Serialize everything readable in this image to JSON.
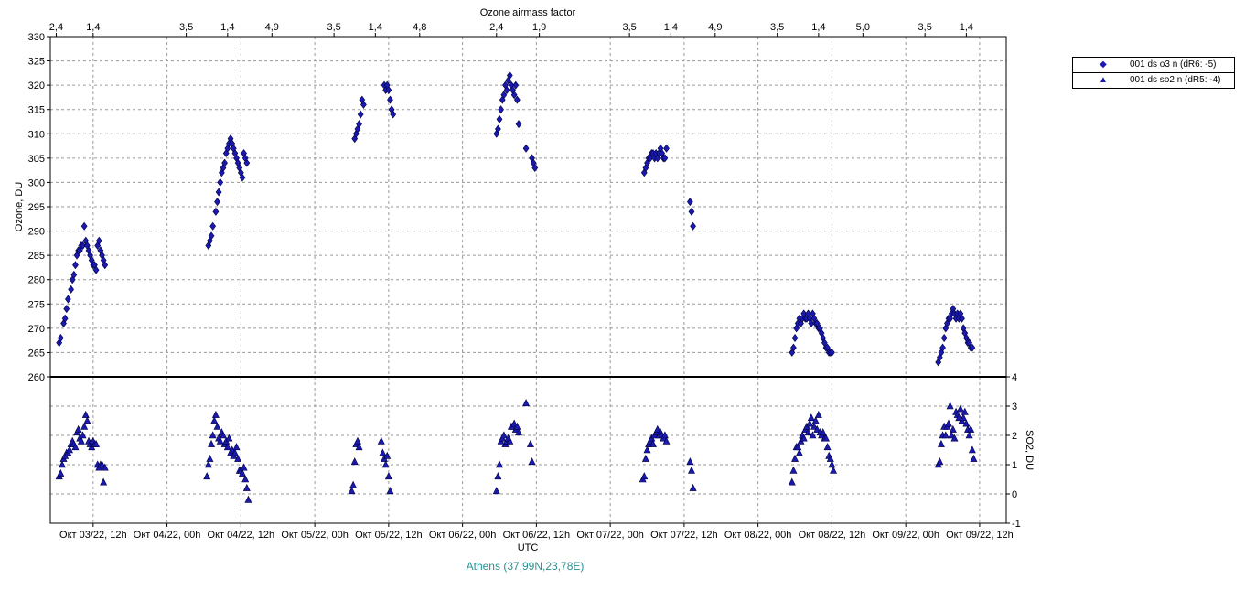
{
  "chart_data": [
    {
      "type": "scatter",
      "panel": "ozone",
      "title": "Ozone airmass factor",
      "xlabel": "UTC",
      "ylabel": "Ozone, DU",
      "ylim": [
        260,
        330
      ],
      "yticks": [
        260,
        265,
        270,
        275,
        280,
        285,
        290,
        295,
        300,
        305,
        310,
        315,
        320,
        325,
        330
      ],
      "top_axis_ticks": [
        {
          "label": "2,4",
          "t": 0.0
        },
        {
          "label": "1,4",
          "t": 0.25
        },
        {
          "label": "3,5",
          "t": 0.88
        },
        {
          "label": "1,4",
          "t": 1.16
        },
        {
          "label": "4,9",
          "t": 1.46
        },
        {
          "label": "3,5",
          "t": 1.88
        },
        {
          "label": "1,4",
          "t": 2.16
        },
        {
          "label": "4,8",
          "t": 2.46
        },
        {
          "label": "2,4",
          "t": 2.98
        },
        {
          "label": "1,9",
          "t": 3.27
        },
        {
          "label": "3,5",
          "t": 3.88
        },
        {
          "label": "1,4",
          "t": 4.16
        },
        {
          "label": "4,9",
          "t": 4.46
        },
        {
          "label": "3,5",
          "t": 4.88
        },
        {
          "label": "1,4",
          "t": 5.16
        },
        {
          "label": "5,0",
          "t": 5.46
        },
        {
          "label": "3,5",
          "t": 5.88
        },
        {
          "label": "1,4",
          "t": 6.16
        }
      ],
      "series": [
        {
          "name": "001 ds o3  n (dR6: -5)",
          "marker": "diamond",
          "color": "#1a1ab0",
          "x": [
            0.02,
            0.03,
            0.05,
            0.06,
            0.07,
            0.08,
            0.1,
            0.11,
            0.12,
            0.13,
            0.14,
            0.15,
            0.16,
            0.17,
            0.18,
            0.19,
            0.2,
            0.21,
            0.22,
            0.23,
            0.24,
            0.25,
            0.26,
            0.27,
            0.28,
            0.29,
            0.3,
            0.31,
            0.32,
            0.33,
            1.03,
            1.04,
            1.05,
            1.06,
            1.08,
            1.09,
            1.1,
            1.11,
            1.12,
            1.13,
            1.14,
            1.15,
            1.16,
            1.17,
            1.18,
            1.19,
            1.2,
            1.21,
            1.22,
            1.23,
            1.24,
            1.25,
            1.26,
            1.27,
            1.28,
            1.29,
            2.02,
            2.03,
            2.04,
            2.05,
            2.06,
            2.07,
            2.08,
            2.22,
            2.23,
            2.24,
            2.25,
            2.26,
            2.27,
            2.28,
            2.98,
            2.99,
            3.0,
            3.01,
            3.02,
            3.03,
            3.04,
            3.05,
            3.06,
            3.07,
            3.08,
            3.09,
            3.1,
            3.11,
            3.12,
            3.13,
            3.18,
            3.22,
            3.23,
            3.24,
            3.98,
            3.99,
            4.0,
            4.01,
            4.02,
            4.03,
            4.04,
            4.05,
            4.06,
            4.07,
            4.08,
            4.09,
            4.1,
            4.11,
            4.12,
            4.13,
            4.29,
            4.3,
            4.31,
            4.98,
            4.99,
            5.0,
            5.01,
            5.02,
            5.03,
            5.04,
            5.05,
            5.06,
            5.07,
            5.08,
            5.09,
            5.1,
            5.11,
            5.12,
            5.13,
            5.14,
            5.15,
            5.16,
            5.17,
            5.18,
            5.19,
            5.2,
            5.21,
            5.22,
            5.23,
            5.24,
            5.25,
            5.97,
            5.98,
            5.99,
            6.0,
            6.01,
            6.02,
            6.03,
            6.04,
            6.05,
            6.06,
            6.07,
            6.08,
            6.09,
            6.1,
            6.11,
            6.12,
            6.13,
            6.14,
            6.15,
            6.16,
            6.17,
            6.18,
            6.19,
            6.2
          ],
          "y": [
            267,
            268,
            271,
            272,
            274,
            276,
            278,
            280,
            281,
            283,
            285,
            286,
            286,
            287,
            287,
            291,
            288,
            287,
            286,
            285,
            284,
            283,
            283,
            282,
            287,
            288,
            286,
            285,
            284,
            283,
            287,
            288,
            289,
            291,
            294,
            296,
            298,
            300,
            302,
            303,
            304,
            306,
            307,
            308,
            309,
            308,
            307,
            306,
            305,
            304,
            303,
            302,
            301,
            306,
            305,
            304,
            309,
            310,
            311,
            312,
            314,
            317,
            316,
            320,
            319,
            320,
            319,
            317,
            315,
            314,
            310,
            311,
            313,
            315,
            317,
            318,
            320,
            319,
            321,
            322,
            320,
            319,
            318,
            320,
            317,
            312,
            307,
            305,
            304,
            303,
            302,
            303,
            304,
            305,
            305,
            306,
            306,
            305,
            306,
            305,
            306,
            307,
            306,
            305,
            305,
            307,
            296,
            294,
            291,
            265,
            266,
            268,
            270,
            271,
            272,
            271,
            272,
            273,
            272,
            272,
            273,
            272,
            271,
            273,
            272,
            271,
            271,
            270,
            270,
            269,
            268,
            267,
            266,
            266,
            265,
            265,
            265,
            263,
            264,
            265,
            266,
            268,
            270,
            271,
            272,
            272,
            273,
            274,
            273,
            272,
            273,
            272,
            273,
            272,
            270,
            269,
            268,
            267,
            267,
            266,
            266
          ]
        }
      ]
    },
    {
      "type": "scatter",
      "panel": "so2",
      "xlabel": "UTC",
      "ylabel": "SO2, DU",
      "ylim": [
        -1,
        4
      ],
      "yticks": [
        -1,
        0,
        1,
        2,
        3,
        4
      ],
      "xticks": [
        {
          "label": "Окт 03/22, 12h",
          "t": 0.25
        },
        {
          "label": "Окт 04/22, 00h",
          "t": 0.75
        },
        {
          "label": "Окт 04/22, 12h",
          "t": 1.25
        },
        {
          "label": "Окт 05/22, 00h",
          "t": 1.75
        },
        {
          "label": "Окт 05/22, 12h",
          "t": 2.25
        },
        {
          "label": "Окт 06/22, 00h",
          "t": 2.75
        },
        {
          "label": "Окт 06/22, 12h",
          "t": 3.25
        },
        {
          "label": "Окт 07/22, 00h",
          "t": 3.75
        },
        {
          "label": "Окт 07/22, 12h",
          "t": 4.25
        },
        {
          "label": "Окт 08/22, 00h",
          "t": 4.75
        },
        {
          "label": "Окт 08/22, 12h",
          "t": 5.25
        },
        {
          "label": "Окт 09/22, 00h",
          "t": 5.75
        },
        {
          "label": "Окт 09/22, 12h",
          "t": 6.25
        }
      ],
      "series": [
        {
          "name": "001 ds so2 n (dR5: -4)",
          "marker": "triangle",
          "color": "#1a1ab0",
          "x": [
            0.02,
            0.03,
            0.04,
            0.05,
            0.06,
            0.07,
            0.08,
            0.09,
            0.1,
            0.11,
            0.12,
            0.13,
            0.14,
            0.15,
            0.16,
            0.17,
            0.18,
            0.19,
            0.2,
            0.21,
            0.22,
            0.23,
            0.24,
            0.25,
            0.26,
            0.27,
            0.28,
            0.29,
            0.3,
            0.31,
            0.32,
            0.33,
            1.02,
            1.03,
            1.04,
            1.05,
            1.06,
            1.07,
            1.08,
            1.09,
            1.1,
            1.11,
            1.12,
            1.13,
            1.14,
            1.15,
            1.16,
            1.17,
            1.18,
            1.19,
            1.2,
            1.21,
            1.22,
            1.23,
            1.24,
            1.25,
            1.26,
            1.27,
            1.28,
            1.29,
            1.3,
            2.0,
            2.01,
            2.02,
            2.03,
            2.04,
            2.05,
            2.2,
            2.21,
            2.22,
            2.23,
            2.24,
            2.25,
            2.26,
            2.98,
            2.99,
            3.0,
            3.01,
            3.02,
            3.03,
            3.04,
            3.05,
            3.06,
            3.07,
            3.08,
            3.09,
            3.1,
            3.11,
            3.12,
            3.13,
            3.18,
            3.21,
            3.22,
            3.97,
            3.98,
            3.99,
            4.0,
            4.01,
            4.02,
            4.03,
            4.04,
            4.05,
            4.06,
            4.07,
            4.08,
            4.09,
            4.1,
            4.11,
            4.12,
            4.13,
            4.29,
            4.3,
            4.31,
            4.98,
            4.99,
            5.0,
            5.01,
            5.02,
            5.03,
            5.04,
            5.05,
            5.06,
            5.07,
            5.08,
            5.09,
            5.1,
            5.11,
            5.12,
            5.13,
            5.14,
            5.15,
            5.16,
            5.17,
            5.18,
            5.19,
            5.2,
            5.21,
            5.22,
            5.23,
            5.24,
            5.25,
            5.26,
            5.97,
            5.98,
            5.99,
            6.0,
            6.01,
            6.02,
            6.03,
            6.04,
            6.05,
            6.06,
            6.07,
            6.08,
            6.09,
            6.1,
            6.11,
            6.12,
            6.13,
            6.14,
            6.15,
            6.16,
            6.17,
            6.18,
            6.19,
            6.2,
            6.21
          ],
          "y": [
            0.6,
            0.7,
            1.0,
            1.2,
            1.3,
            1.4,
            1.4,
            1.5,
            1.7,
            1.8,
            1.7,
            1.6,
            2.1,
            2.2,
            1.9,
            1.8,
            2.0,
            2.3,
            2.7,
            2.5,
            1.8,
            1.7,
            1.6,
            1.8,
            1.7,
            1.7,
            1.0,
            0.9,
            1.0,
            1.0,
            0.4,
            0.9,
            0.6,
            1.0,
            1.2,
            1.7,
            2.0,
            2.5,
            2.7,
            2.3,
            1.9,
            1.8,
            2.1,
            2.0,
            1.7,
            1.8,
            1.6,
            1.9,
            1.4,
            1.5,
            1.3,
            1.4,
            1.6,
            1.2,
            0.8,
            0.8,
            0.7,
            0.9,
            0.5,
            0.2,
            -0.2,
            0.1,
            0.3,
            1.1,
            1.7,
            1.8,
            1.6,
            1.8,
            1.4,
            1.2,
            1.0,
            1.3,
            0.6,
            0.1,
            0.1,
            0.6,
            1.0,
            1.8,
            1.9,
            2.0,
            1.7,
            1.8,
            1.9,
            1.8,
            2.3,
            2.3,
            2.4,
            2.2,
            2.3,
            2.1,
            3.1,
            1.7,
            1.1,
            0.5,
            0.6,
            1.2,
            1.5,
            1.7,
            1.8,
            1.9,
            1.7,
            2.0,
            2.1,
            2.2,
            2.0,
            2.1,
            2.0,
            1.9,
            2.0,
            1.8,
            1.1,
            0.8,
            0.2,
            0.4,
            0.8,
            1.2,
            1.6,
            1.6,
            1.4,
            1.8,
            2.0,
            1.9,
            2.2,
            2.3,
            2.1,
            2.4,
            2.6,
            2.0,
            2.3,
            2.5,
            2.2,
            2.7,
            2.1,
            2.0,
            2.1,
            1.9,
            1.9,
            1.6,
            1.3,
            1.2,
            1.0,
            0.8,
            1.0,
            1.1,
            1.7,
            2.0,
            2.3,
            2.0,
            2.3,
            2.4,
            3.0,
            2.0,
            2.2,
            1.9,
            2.8,
            2.7,
            2.6,
            2.9,
            2.5,
            2.6,
            2.8,
            2.4,
            2.2,
            2.0,
            2.2,
            1.5,
            1.2
          ]
        }
      ]
    }
  ],
  "station_label": "Athens (37,99N,23,78E)",
  "legend": {
    "o3": {
      "label": "001 ds o3  n (dR6: -5)",
      "symbol": "◆"
    },
    "so2": {
      "label": "001 ds so2 n (dR5: -4)",
      "symbol": "▲"
    }
  }
}
